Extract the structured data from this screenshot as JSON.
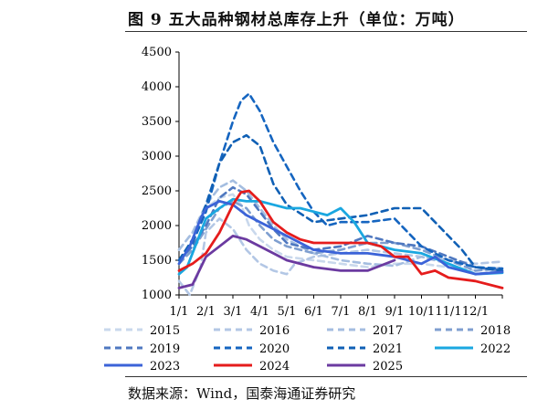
{
  "title": "图 9 五大品种钢材总库存上升（单位：万吨）",
  "source": "数据来源：Wind，国泰海通证券研究",
  "chart_data": {
    "type": "line",
    "title": "图 9 五大品种钢材总库存上升（单位：万吨）",
    "xlabel": "",
    "ylabel": "",
    "x_ticks": [
      "1/1",
      "2/1",
      "3/1",
      "4/1",
      "5/1",
      "6/1",
      "7/1",
      "8/1",
      "9/1",
      "10/1",
      "11/1",
      "12/1"
    ],
    "x_range_months": [
      1,
      13
    ],
    "y_ticks": [
      1000,
      1500,
      2000,
      2500,
      3000,
      3500,
      4000,
      4500
    ],
    "ylim": [
      1000,
      4500
    ],
    "legend_position": "bottom",
    "grid": false,
    "series": [
      {
        "name": "2015",
        "style": "dashed",
        "color": "#c9d8ec",
        "points": [
          [
            1.0,
            1650
          ],
          [
            1.5,
            1900
          ],
          [
            2.0,
            2250
          ],
          [
            2.5,
            2400
          ],
          [
            3.0,
            2450
          ],
          [
            3.3,
            2300
          ],
          [
            3.6,
            2000
          ],
          [
            4.0,
            1800
          ],
          [
            4.5,
            1650
          ],
          [
            5.0,
            1550
          ],
          [
            6.0,
            1500
          ],
          [
            7.0,
            1450
          ],
          [
            8.0,
            1400
          ],
          [
            9.0,
            1450
          ],
          [
            10.0,
            1450
          ],
          [
            11.0,
            1400
          ],
          [
            12.0,
            1350
          ],
          [
            13.0,
            1400
          ]
        ]
      },
      {
        "name": "2016",
        "style": "dashed",
        "color": "#b3c7e5",
        "points": [
          [
            1.0,
            1200
          ],
          [
            1.4,
            1000
          ],
          [
            1.8,
            1400
          ],
          [
            2.0,
            1900
          ],
          [
            2.5,
            2100
          ],
          [
            3.0,
            1950
          ],
          [
            3.5,
            1650
          ],
          [
            4.0,
            1450
          ],
          [
            4.5,
            1350
          ],
          [
            5.0,
            1300
          ],
          [
            5.3,
            1450
          ],
          [
            6.0,
            1550
          ],
          [
            7.0,
            1600
          ],
          [
            8.0,
            1650
          ],
          [
            9.0,
            1600
          ],
          [
            10.0,
            1550
          ],
          [
            11.0,
            1500
          ],
          [
            12.0,
            1450
          ],
          [
            13.0,
            1480
          ]
        ]
      },
      {
        "name": "2017",
        "style": "dashed",
        "color": "#a4bde0",
        "points": [
          [
            1.0,
            1650
          ],
          [
            1.5,
            1900
          ],
          [
            2.0,
            2300
          ],
          [
            2.5,
            2550
          ],
          [
            3.0,
            2650
          ],
          [
            3.5,
            2500
          ],
          [
            4.0,
            2250
          ],
          [
            4.5,
            2000
          ],
          [
            5.0,
            1800
          ],
          [
            6.0,
            1600
          ],
          [
            7.0,
            1500
          ],
          [
            8.0,
            1450
          ],
          [
            9.0,
            1420
          ],
          [
            10.0,
            1550
          ],
          [
            11.0,
            1450
          ],
          [
            12.0,
            1300
          ],
          [
            13.0,
            1350
          ]
        ]
      },
      {
        "name": "2018",
        "style": "dashed",
        "color": "#7f9fd0",
        "points": [
          [
            1.0,
            1450
          ],
          [
            1.5,
            1650
          ],
          [
            2.0,
            1950
          ],
          [
            2.5,
            2250
          ],
          [
            3.0,
            2350
          ],
          [
            3.5,
            2250
          ],
          [
            4.0,
            2000
          ],
          [
            4.5,
            1800
          ],
          [
            5.0,
            1700
          ],
          [
            6.0,
            1600
          ],
          [
            7.0,
            1650
          ],
          [
            8.0,
            1750
          ],
          [
            9.0,
            1750
          ],
          [
            10.0,
            1650
          ],
          [
            11.0,
            1500
          ],
          [
            12.0,
            1350
          ],
          [
            13.0,
            1380
          ]
        ]
      },
      {
        "name": "2019",
        "style": "dashed",
        "color": "#4f78c0",
        "points": [
          [
            1.0,
            1500
          ],
          [
            1.5,
            1700
          ],
          [
            2.0,
            2000
          ],
          [
            2.5,
            2400
          ],
          [
            3.0,
            2550
          ],
          [
            3.5,
            2450
          ],
          [
            4.0,
            2200
          ],
          [
            4.5,
            1950
          ],
          [
            5.0,
            1750
          ],
          [
            6.0,
            1650
          ],
          [
            7.0,
            1700
          ],
          [
            8.0,
            1850
          ],
          [
            9.0,
            1750
          ],
          [
            10.0,
            1700
          ],
          [
            11.0,
            1550
          ],
          [
            12.0,
            1400
          ],
          [
            13.0,
            1350
          ]
        ]
      },
      {
        "name": "2020",
        "style": "dashed",
        "color": "#1565c0",
        "points": [
          [
            1.0,
            1500
          ],
          [
            1.5,
            1750
          ],
          [
            2.0,
            2200
          ],
          [
            2.5,
            2900
          ],
          [
            3.0,
            3500
          ],
          [
            3.3,
            3800
          ],
          [
            3.6,
            3900
          ],
          [
            4.0,
            3650
          ],
          [
            4.5,
            3200
          ],
          [
            5.0,
            2850
          ],
          [
            5.5,
            2500
          ],
          [
            6.0,
            2200
          ],
          [
            6.5,
            2000
          ],
          [
            7.0,
            2050
          ],
          [
            8.0,
            2050
          ],
          [
            9.0,
            2100
          ],
          [
            10.0,
            1700
          ],
          [
            11.0,
            1500
          ],
          [
            12.0,
            1400
          ],
          [
            13.0,
            1380
          ]
        ]
      },
      {
        "name": "2021",
        "style": "dashed",
        "color": "#1060b5",
        "points": [
          [
            1.0,
            1500
          ],
          [
            1.5,
            1800
          ],
          [
            2.0,
            2300
          ],
          [
            2.5,
            2900
          ],
          [
            3.0,
            3200
          ],
          [
            3.5,
            3300
          ],
          [
            4.0,
            3150
          ],
          [
            4.5,
            2600
          ],
          [
            5.0,
            2300
          ],
          [
            6.0,
            2050
          ],
          [
            7.0,
            2100
          ],
          [
            8.0,
            2150
          ],
          [
            9.0,
            2250
          ],
          [
            10.0,
            2250
          ],
          [
            10.5,
            2050
          ],
          [
            11.0,
            1850
          ],
          [
            11.5,
            1650
          ],
          [
            12.0,
            1400
          ],
          [
            13.0,
            1350
          ]
        ]
      },
      {
        "name": "2022",
        "style": "solid",
        "color": "#1aa7e0",
        "points": [
          [
            1.0,
            1300
          ],
          [
            1.3,
            1400
          ],
          [
            1.7,
            1800
          ],
          [
            2.0,
            2100
          ],
          [
            2.5,
            2250
          ],
          [
            3.0,
            2380
          ],
          [
            3.5,
            2350
          ],
          [
            4.0,
            2350
          ],
          [
            4.5,
            2300
          ],
          [
            5.0,
            2250
          ],
          [
            5.5,
            2250
          ],
          [
            6.0,
            2200
          ],
          [
            6.5,
            2150
          ],
          [
            7.0,
            2250
          ],
          [
            7.5,
            2050
          ],
          [
            8.0,
            1750
          ],
          [
            9.0,
            1650
          ],
          [
            10.0,
            1600
          ],
          [
            11.0,
            1450
          ],
          [
            12.0,
            1300
          ],
          [
            13.0,
            1320
          ]
        ]
      },
      {
        "name": "2023",
        "style": "solid",
        "color": "#3b63d8",
        "points": [
          [
            1.0,
            1450
          ],
          [
            1.4,
            1700
          ],
          [
            1.8,
            2100
          ],
          [
            2.0,
            2250
          ],
          [
            2.5,
            2350
          ],
          [
            3.0,
            2300
          ],
          [
            3.5,
            2150
          ],
          [
            4.0,
            2050
          ],
          [
            4.5,
            1950
          ],
          [
            5.0,
            1850
          ],
          [
            6.0,
            1650
          ],
          [
            7.0,
            1600
          ],
          [
            8.0,
            1600
          ],
          [
            9.0,
            1550
          ],
          [
            10.0,
            1450
          ],
          [
            10.5,
            1550
          ],
          [
            11.0,
            1400
          ],
          [
            12.0,
            1300
          ],
          [
            13.0,
            1330
          ]
        ]
      },
      {
        "name": "2024",
        "style": "solid",
        "color": "#e51c1c",
        "points": [
          [
            1.0,
            1350
          ],
          [
            1.5,
            1450
          ],
          [
            2.0,
            1600
          ],
          [
            2.5,
            1900
          ],
          [
            3.0,
            2300
          ],
          [
            3.3,
            2480
          ],
          [
            3.6,
            2500
          ],
          [
            4.0,
            2350
          ],
          [
            4.5,
            2050
          ],
          [
            5.0,
            1900
          ],
          [
            5.5,
            1800
          ],
          [
            6.0,
            1750
          ],
          [
            7.0,
            1750
          ],
          [
            8.0,
            1750
          ],
          [
            8.5,
            1700
          ],
          [
            9.0,
            1550
          ],
          [
            9.5,
            1550
          ],
          [
            10.0,
            1300
          ],
          [
            10.5,
            1350
          ],
          [
            11.0,
            1250
          ],
          [
            12.0,
            1200
          ],
          [
            13.0,
            1100
          ]
        ]
      },
      {
        "name": "2025",
        "style": "solid",
        "color": "#6b3aa0",
        "points": [
          [
            1.0,
            1100
          ],
          [
            1.5,
            1150
          ],
          [
            2.0,
            1550
          ],
          [
            2.5,
            1700
          ],
          [
            3.0,
            1850
          ],
          [
            3.5,
            1800
          ],
          [
            4.0,
            1700
          ],
          [
            4.5,
            1600
          ],
          [
            5.0,
            1500
          ],
          [
            6.0,
            1400
          ],
          [
            7.0,
            1350
          ],
          [
            8.0,
            1350
          ],
          [
            9.0,
            1500
          ]
        ]
      }
    ]
  }
}
